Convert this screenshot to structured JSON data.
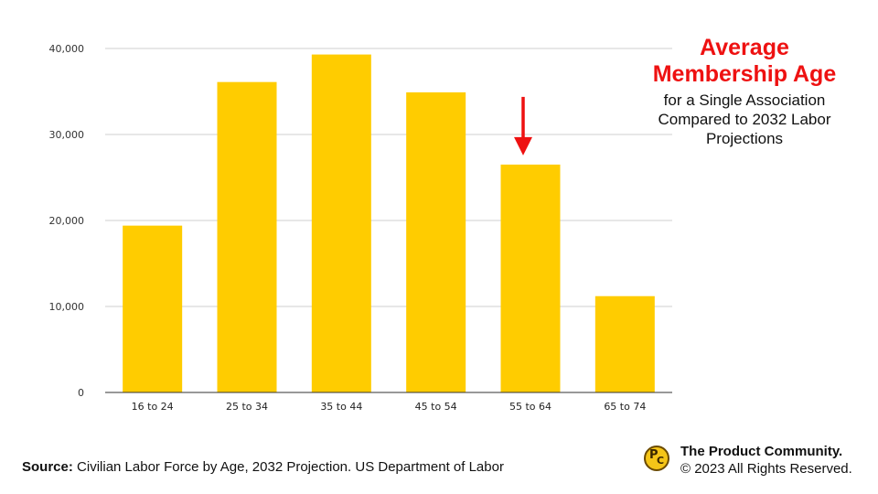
{
  "chart_data": {
    "type": "bar",
    "categories": [
      "16 to 24",
      "25 to 34",
      "35 to 44",
      "45 to 54",
      "55 to 64",
      "65 to 74"
    ],
    "values": [
      19400,
      36100,
      39300,
      34900,
      26500,
      11200
    ],
    "ylim": [
      0,
      40000
    ],
    "yticks": [
      0,
      10000,
      20000,
      30000,
      40000
    ],
    "ytick_labels": [
      "0",
      "10,000",
      "20,000",
      "30,000",
      "40,000"
    ],
    "bar_color": "#ffcc00",
    "grid": true,
    "highlight_category": "55 to 64",
    "arrow_color": "#ee1111"
  },
  "title": {
    "line1": "Average",
    "line2": "Membership Age",
    "subtitle_line1": "for a Single Association",
    "subtitle_line2": "Compared to 2032 Labor",
    "subtitle_line3": "Projections"
  },
  "footer": {
    "source_label": "Source:",
    "source_text": " Civilian Labor Force by Age, 2032 Projection. US Department of Labor",
    "brand_name": "The Product Community.",
    "copyright": "© 2023 All Rights Reserved.",
    "logo_letter_1": "P",
    "logo_letter_2": "C"
  }
}
